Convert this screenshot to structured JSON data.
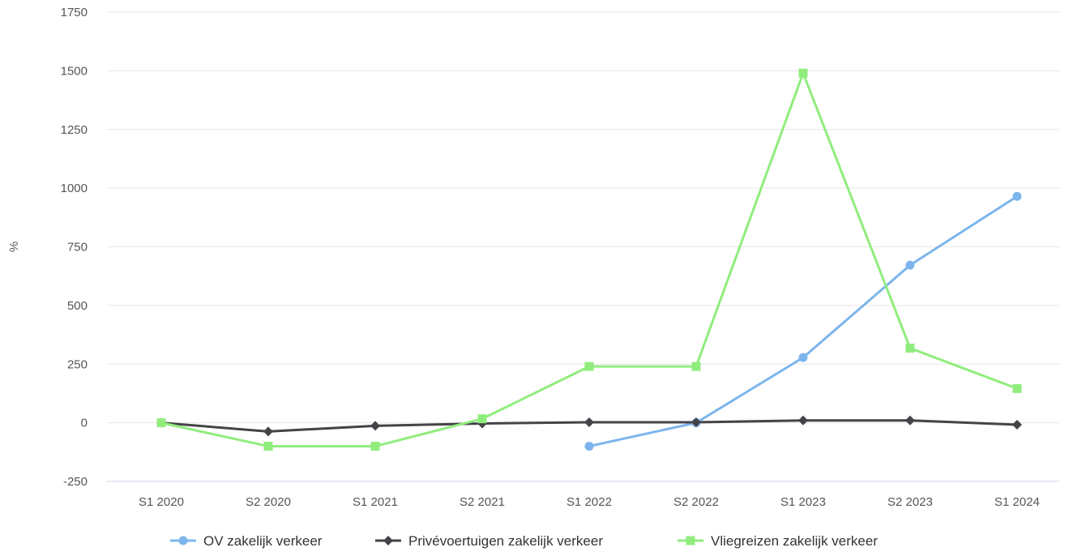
{
  "chart_data": {
    "type": "line",
    "title": "",
    "xlabel": "",
    "ylabel": "%",
    "categories": [
      "S1 2020",
      "S2 2020",
      "S1 2021",
      "S2 2021",
      "S1 2022",
      "S2 2022",
      "S1 2023",
      "S2 2023",
      "S1 2024"
    ],
    "ylim": [
      -250,
      1750
    ],
    "yticks": [
      -250,
      0,
      250,
      500,
      750,
      1000,
      1250,
      1500,
      1750
    ],
    "grid": true,
    "legend_position": "bottom",
    "series": [
      {
        "name": "OV zakelijk verkeer",
        "color": "#7cb5ec",
        "marker": "circle",
        "values": [
          null,
          null,
          null,
          null,
          -100,
          0,
          278,
          672,
          965
        ]
      },
      {
        "name": "Privévoertuigen zakelijk verkeer",
        "color": "#434348",
        "marker": "diamond",
        "values": [
          0,
          -37,
          -13,
          -3,
          2,
          2,
          10,
          10,
          -8
        ]
      },
      {
        "name": "Vliegreizen zakelijk verkeer",
        "color": "#90ed7d",
        "marker": "square",
        "values": [
          0,
          -100,
          -100,
          17,
          240,
          240,
          1490,
          318,
          146
        ]
      }
    ]
  }
}
